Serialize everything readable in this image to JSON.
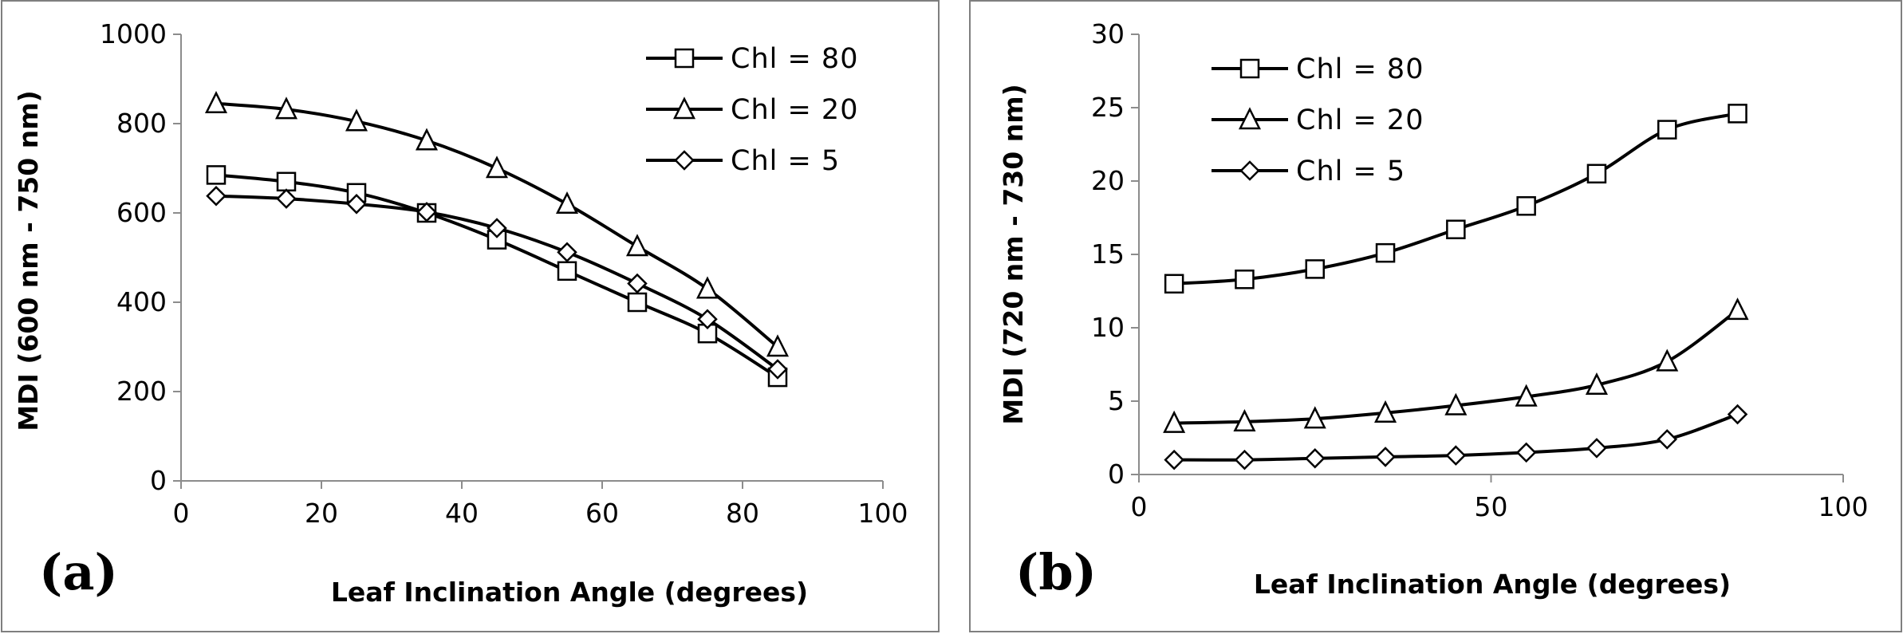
{
  "chart_data": [
    {
      "type": "line",
      "panel_label": "(a)",
      "xlabel": "Leaf Inclination Angle (degrees)",
      "ylabel": "MDI (600 nm - 750 nm)",
      "xlim": [
        0,
        100
      ],
      "ylim": [
        0,
        1000
      ],
      "xticks": [
        0,
        20,
        40,
        60,
        80,
        100
      ],
      "yticks": [
        0,
        200,
        400,
        600,
        800,
        1000
      ],
      "grid": false,
      "legend_position": "top-right",
      "x": [
        5,
        15,
        25,
        35,
        45,
        55,
        65,
        75,
        85
      ],
      "series": [
        {
          "name": "Chl = 80",
          "marker": "square",
          "values": [
            685,
            670,
            645,
            600,
            540,
            470,
            400,
            330,
            232
          ]
        },
        {
          "name": "Chl = 20",
          "marker": "triangle",
          "values": [
            845,
            832,
            805,
            762,
            700,
            620,
            525,
            430,
            300
          ]
        },
        {
          "name": "Chl = 5",
          "marker": "diamond",
          "values": [
            638,
            632,
            620,
            602,
            566,
            512,
            442,
            362,
            250
          ]
        }
      ]
    },
    {
      "type": "line",
      "panel_label": "(b)",
      "xlabel": "Leaf Inclination Angle (degrees)",
      "ylabel": "MDI (720 nm - 730 nm)",
      "xlim": [
        0,
        100
      ],
      "ylim": [
        0,
        30
      ],
      "xticks": [
        0,
        50,
        100
      ],
      "yticks": [
        0,
        5,
        10,
        15,
        20,
        25,
        30
      ],
      "grid": false,
      "legend_position": "top-left",
      "x": [
        5,
        15,
        25,
        35,
        45,
        55,
        65,
        75,
        85
      ],
      "series": [
        {
          "name": "Chl = 80",
          "marker": "square",
          "values": [
            13.0,
            13.3,
            14.0,
            15.1,
            16.7,
            18.3,
            20.5,
            23.5,
            24.6
          ]
        },
        {
          "name": "Chl = 20",
          "marker": "triangle",
          "values": [
            3.5,
            3.6,
            3.8,
            4.2,
            4.7,
            5.3,
            6.1,
            7.7,
            11.2
          ]
        },
        {
          "name": "Chl = 5",
          "marker": "diamond",
          "values": [
            1.0,
            1.0,
            1.1,
            1.2,
            1.3,
            1.5,
            1.8,
            2.4,
            4.1
          ]
        }
      ]
    }
  ]
}
